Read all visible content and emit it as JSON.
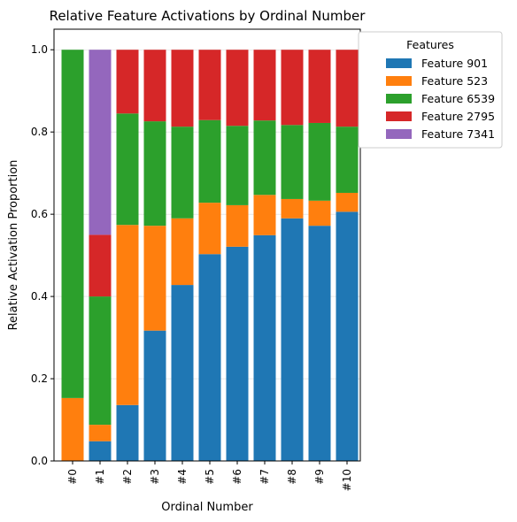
{
  "chart_data": {
    "type": "bar",
    "stacked": true,
    "title": "Relative Feature Activations by Ordinal Number",
    "xlabel": "Ordinal Number",
    "ylabel": "Relative Activation Proportion",
    "ylim": [
      0,
      1.05
    ],
    "yticks": [
      "0.0",
      "0.2",
      "0.4",
      "0.6",
      "0.8",
      "1.0"
    ],
    "grid": "horizontal, faint",
    "legend_title": "Features",
    "legend_position": "outside top-right",
    "categories": [
      "#0",
      "#1",
      "#2",
      "#3",
      "#4",
      "#5",
      "#6",
      "#7",
      "#8",
      "#9",
      "#10"
    ],
    "series": [
      {
        "name": "Feature 901",
        "color": "#1f77b4",
        "values": [
          0.0,
          0.048,
          0.136,
          0.317,
          0.428,
          0.503,
          0.521,
          0.549,
          0.59,
          0.572,
          0.606
        ]
      },
      {
        "name": "Feature 523",
        "color": "#ff7f0e",
        "values": [
          0.153,
          0.04,
          0.438,
          0.255,
          0.162,
          0.125,
          0.101,
          0.098,
          0.047,
          0.061,
          0.046
        ]
      },
      {
        "name": "Feature 6539",
        "color": "#2ca02c",
        "values": [
          0.847,
          0.312,
          0.271,
          0.254,
          0.223,
          0.201,
          0.193,
          0.181,
          0.18,
          0.189,
          0.161
        ]
      },
      {
        "name": "Feature 2795",
        "color": "#d62728",
        "values": [
          0.0,
          0.15,
          0.155,
          0.174,
          0.187,
          0.171,
          0.185,
          0.172,
          0.183,
          0.178,
          0.187
        ]
      },
      {
        "name": "Feature 7341",
        "color": "#9467bd",
        "values": [
          0.0,
          0.45,
          0.0,
          0.0,
          0.0,
          0.0,
          0.0,
          0.0,
          0.0,
          0.0,
          0.0
        ]
      }
    ]
  }
}
